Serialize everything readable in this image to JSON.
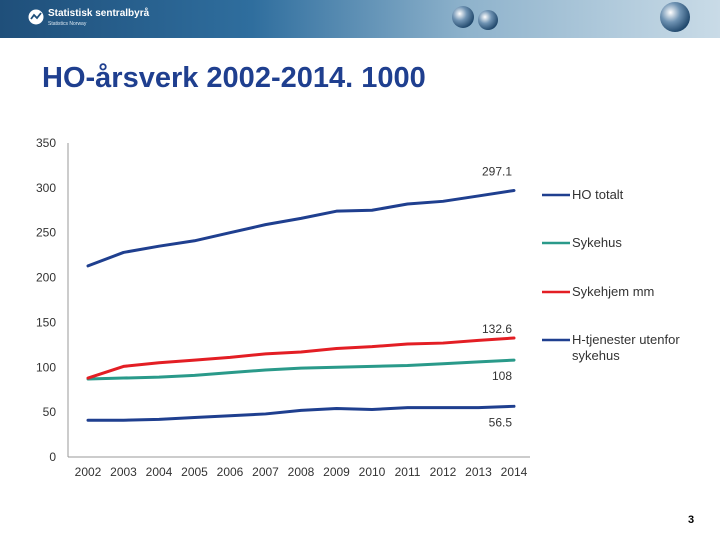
{
  "header": {
    "org_name": "Statistisk sentralbyrå",
    "org_sub": "Statistics Norway"
  },
  "page_title": "HO-årsverk 2002-2014. 1000",
  "slide_number": "3",
  "chart_data": {
    "type": "line",
    "title": "HO-årsverk 2002-2014. 1000",
    "xlabel": "",
    "ylabel": "",
    "ylim": [
      0,
      350
    ],
    "yticks": [
      0,
      50,
      100,
      150,
      200,
      250,
      300,
      350
    ],
    "grid": false,
    "legend_position": "right",
    "x": [
      "2002",
      "2003",
      "2004",
      "2005",
      "2006",
      "2007",
      "2008",
      "2009",
      "2010",
      "2011",
      "2012",
      "2013",
      "2014"
    ],
    "series": [
      {
        "name": "HO totalt",
        "color": "#1f3f8f",
        "values": [
          213,
          228,
          235,
          241,
          250,
          259,
          266,
          274,
          275,
          282,
          285,
          291,
          297.1
        ],
        "end_label": "297.1"
      },
      {
        "name": "Sykehus",
        "color": "#2a9a8a",
        "values": [
          87,
          88,
          89,
          91,
          94,
          97,
          99,
          100,
          101,
          102,
          104,
          106,
          108
        ],
        "end_label": "108"
      },
      {
        "name": "Sykehjem mm",
        "color": "#e31e24",
        "values": [
          88,
          101,
          105,
          108,
          111,
          115,
          117,
          121,
          123,
          126,
          127,
          130,
          132.6
        ],
        "end_label": "132.6"
      },
      {
        "name": "H-tjenester utenfor sykehus",
        "color": "#1f3f8f",
        "values": [
          41,
          41,
          42,
          44,
          46,
          48,
          52,
          54,
          53,
          55,
          55,
          55,
          56.5
        ],
        "end_label": "56.5"
      }
    ]
  }
}
